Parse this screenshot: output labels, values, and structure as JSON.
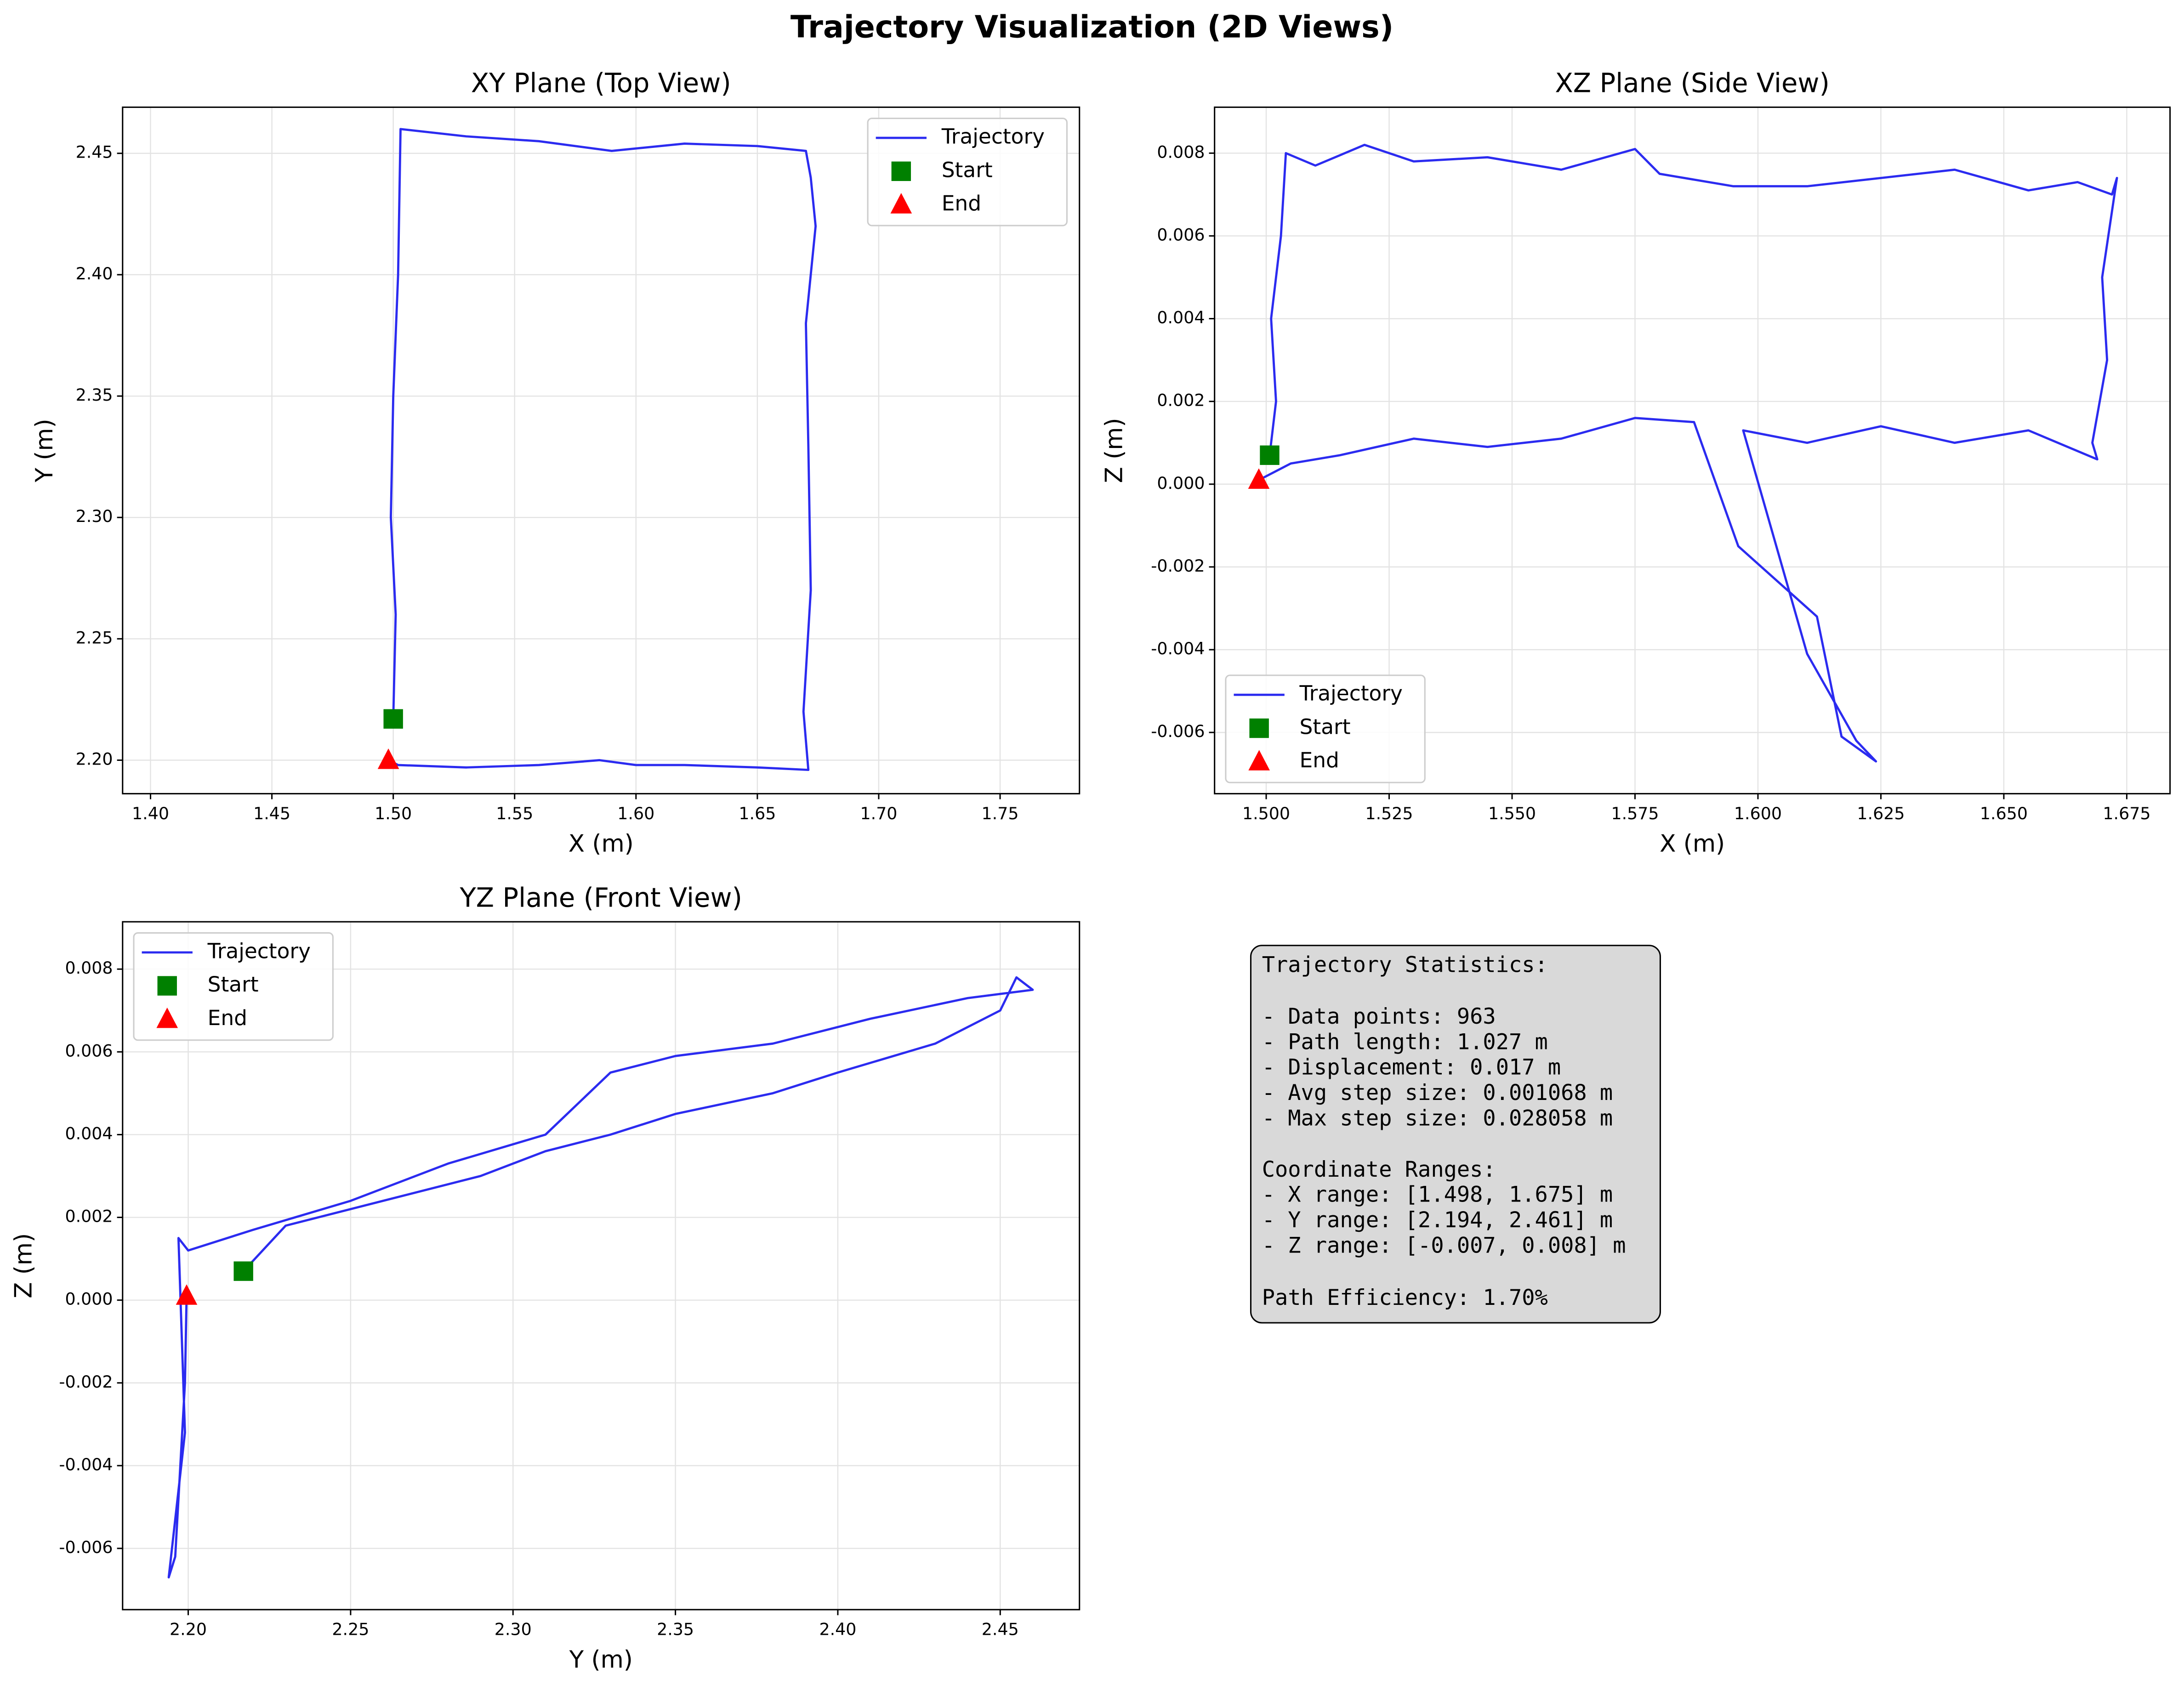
{
  "title": "Trajectory Visualization (2D Views)",
  "chart_data": [
    {
      "type": "line",
      "title": "XY Plane (Top View)",
      "xlabel": "X (m)",
      "ylabel": "Y (m)",
      "grid": true,
      "legend": "upper right",
      "xlim": [
        1.3885,
        1.7827
      ],
      "ylim": [
        2.1862,
        2.469
      ],
      "xticks": [
        {
          "value": 1.4,
          "label": "1.40"
        },
        1.45,
        {
          "value": 1.5,
          "label": "1.50"
        },
        1.55,
        {
          "value": 1.6,
          "label": "1.60"
        },
        1.65,
        {
          "value": 1.7,
          "label": "1.70"
        },
        1.75
      ],
      "yticks": [
        {
          "value": 2.2,
          "label": "2.20"
        },
        2.25,
        {
          "value": 2.3,
          "label": "2.30"
        },
        2.35,
        {
          "value": 2.4,
          "label": "2.40"
        },
        2.45
      ],
      "series": [
        {
          "name": "Trajectory",
          "color": "#2b2bf0",
          "marker": "line",
          "x": [
            1.5,
            1.501,
            1.499,
            1.5,
            1.502,
            1.503,
            1.53,
            1.56,
            1.59,
            1.62,
            1.65,
            1.67,
            1.672,
            1.674,
            1.67,
            1.671,
            1.672,
            1.669,
            1.671,
            1.65,
            1.62,
            1.6,
            1.585,
            1.56,
            1.53,
            1.502,
            1.498
          ],
          "values": [
            2.217,
            2.26,
            2.3,
            2.35,
            2.4,
            2.46,
            2.457,
            2.455,
            2.451,
            2.454,
            2.453,
            2.451,
            2.44,
            2.42,
            2.38,
            2.33,
            2.27,
            2.22,
            2.196,
            2.197,
            2.198,
            2.198,
            2.2,
            2.198,
            2.197,
            2.198,
            2.2
          ]
        },
        {
          "name": "Start",
          "color": "#008000",
          "marker": "square",
          "x": [
            1.5
          ],
          "values": [
            2.217
          ]
        },
        {
          "name": "End",
          "color": "#ff0000",
          "marker": "triangle",
          "x": [
            1.498
          ],
          "values": [
            2.2
          ]
        }
      ]
    },
    {
      "type": "line",
      "title": "XZ Plane (Side View)",
      "xlabel": "X (m)",
      "ylabel": "Z (m)",
      "grid": true,
      "legend": "lower left",
      "xlim": [
        1.4895,
        1.6838
      ],
      "ylim": [
        -0.00748,
        0.00911
      ],
      "xticks": [
        {
          "value": 1.5,
          "label": "1.500"
        },
        1.525,
        {
          "value": 1.55,
          "label": "1.550"
        },
        1.575,
        {
          "value": 1.6,
          "label": "1.600"
        },
        1.625,
        {
          "value": 1.65,
          "label": "1.650"
        },
        1.675
      ],
      "yticks": [
        -0.006,
        -0.004,
        -0.002,
        {
          "value": 0,
          "label": "0.000"
        },
        0.002,
        0.004,
        0.006,
        0.008
      ],
      "series": [
        {
          "name": "Trajectory",
          "color": "#2b2bf0",
          "marker": "line",
          "x": [
            1.5007,
            1.502,
            1.501,
            1.503,
            1.504,
            1.51,
            1.52,
            1.53,
            1.545,
            1.56,
            1.575,
            1.58,
            1.595,
            1.61,
            1.625,
            1.64,
            1.655,
            1.665,
            1.672,
            1.673,
            1.67,
            1.671,
            1.668,
            1.669,
            1.655,
            1.64,
            1.625,
            1.61,
            1.597,
            1.61,
            1.62,
            1.624,
            1.617,
            1.612,
            1.596,
            1.587,
            1.575,
            1.56,
            1.545,
            1.53,
            1.515,
            1.505,
            1.4985
          ],
          "values": [
            0.0007,
            0.002,
            0.004,
            0.006,
            0.008,
            0.0077,
            0.0082,
            0.0078,
            0.0079,
            0.0076,
            0.0081,
            0.0075,
            0.0072,
            0.0072,
            0.0074,
            0.0076,
            0.0071,
            0.0073,
            0.007,
            0.0074,
            0.005,
            0.003,
            0.001,
            0.0006,
            0.0013,
            0.001,
            0.0014,
            0.001,
            0.0013,
            -0.0041,
            -0.0062,
            -0.0067,
            -0.0061,
            -0.0032,
            -0.0015,
            0.0015,
            0.0016,
            0.0011,
            0.0009,
            0.0011,
            0.0007,
            0.0005,
            0.0001
          ]
        },
        {
          "name": "Start",
          "color": "#008000",
          "marker": "square",
          "x": [
            1.5007
          ],
          "values": [
            0.0007
          ]
        },
        {
          "name": "End",
          "color": "#ff0000",
          "marker": "triangle",
          "x": [
            1.4985
          ],
          "values": [
            0.0001
          ]
        }
      ]
    },
    {
      "type": "line",
      "title": "YZ Plane (Front View)",
      "xlabel": "Y (m)",
      "ylabel": "Z (m)",
      "grid": true,
      "legend": "upper left",
      "xlim": [
        2.1798,
        2.4744
      ],
      "ylim": [
        -0.00748,
        0.009144
      ],
      "xticks": [
        {
          "value": 2.2,
          "label": "2.20"
        },
        2.25,
        {
          "value": 2.3,
          "label": "2.30"
        },
        2.35,
        {
          "value": 2.4,
          "label": "2.40"
        },
        2.45
      ],
      "yticks": [
        -0.006,
        -0.004,
        -0.002,
        {
          "value": 0,
          "label": "0.000"
        },
        0.002,
        0.004,
        0.006,
        0.008
      ],
      "series": [
        {
          "name": "Trajectory",
          "color": "#2b2bf0",
          "marker": "line",
          "x": [
            2.217,
            2.23,
            2.26,
            2.29,
            2.31,
            2.33,
            2.35,
            2.38,
            2.4,
            2.43,
            2.45,
            2.455,
            2.46,
            2.44,
            2.41,
            2.38,
            2.35,
            2.33,
            2.31,
            2.28,
            2.25,
            2.22,
            2.2,
            2.197,
            2.199,
            2.194,
            2.196,
            2.199,
            2.1995
          ],
          "values": [
            0.0007,
            0.0018,
            0.0024,
            0.003,
            0.0036,
            0.004,
            0.0045,
            0.005,
            0.0055,
            0.0062,
            0.007,
            0.0078,
            0.0075,
            0.0073,
            0.0068,
            0.0062,
            0.0059,
            0.0055,
            0.004,
            0.0033,
            0.0024,
            0.0017,
            0.0012,
            0.0015,
            -0.0032,
            -0.0067,
            -0.0062,
            -0.002,
            0.0001
          ]
        },
        {
          "name": "Start",
          "color": "#008000",
          "marker": "square",
          "x": [
            2.217
          ],
          "values": [
            0.0007
          ]
        },
        {
          "name": "End",
          "color": "#ff0000",
          "marker": "triangle",
          "x": [
            2.1995
          ],
          "values": [
            0.0001
          ]
        }
      ]
    }
  ],
  "stats": {
    "title": "Trajectory Statistics:",
    "summary": [
      "- Data points: 963",
      "- Path length: 1.027 m",
      "- Displacement: 0.017 m",
      "- Avg step size: 0.001068 m",
      "- Max step size: 0.028058 m"
    ],
    "ranges_title": "Coordinate Ranges:",
    "ranges": [
      "- X range: [1.498, 1.675] m",
      "- Y range: [2.194, 2.461] m",
      "- Z range: [-0.007, 0.008] m"
    ],
    "efficiency": "Path Efficiency: 1.70%"
  }
}
